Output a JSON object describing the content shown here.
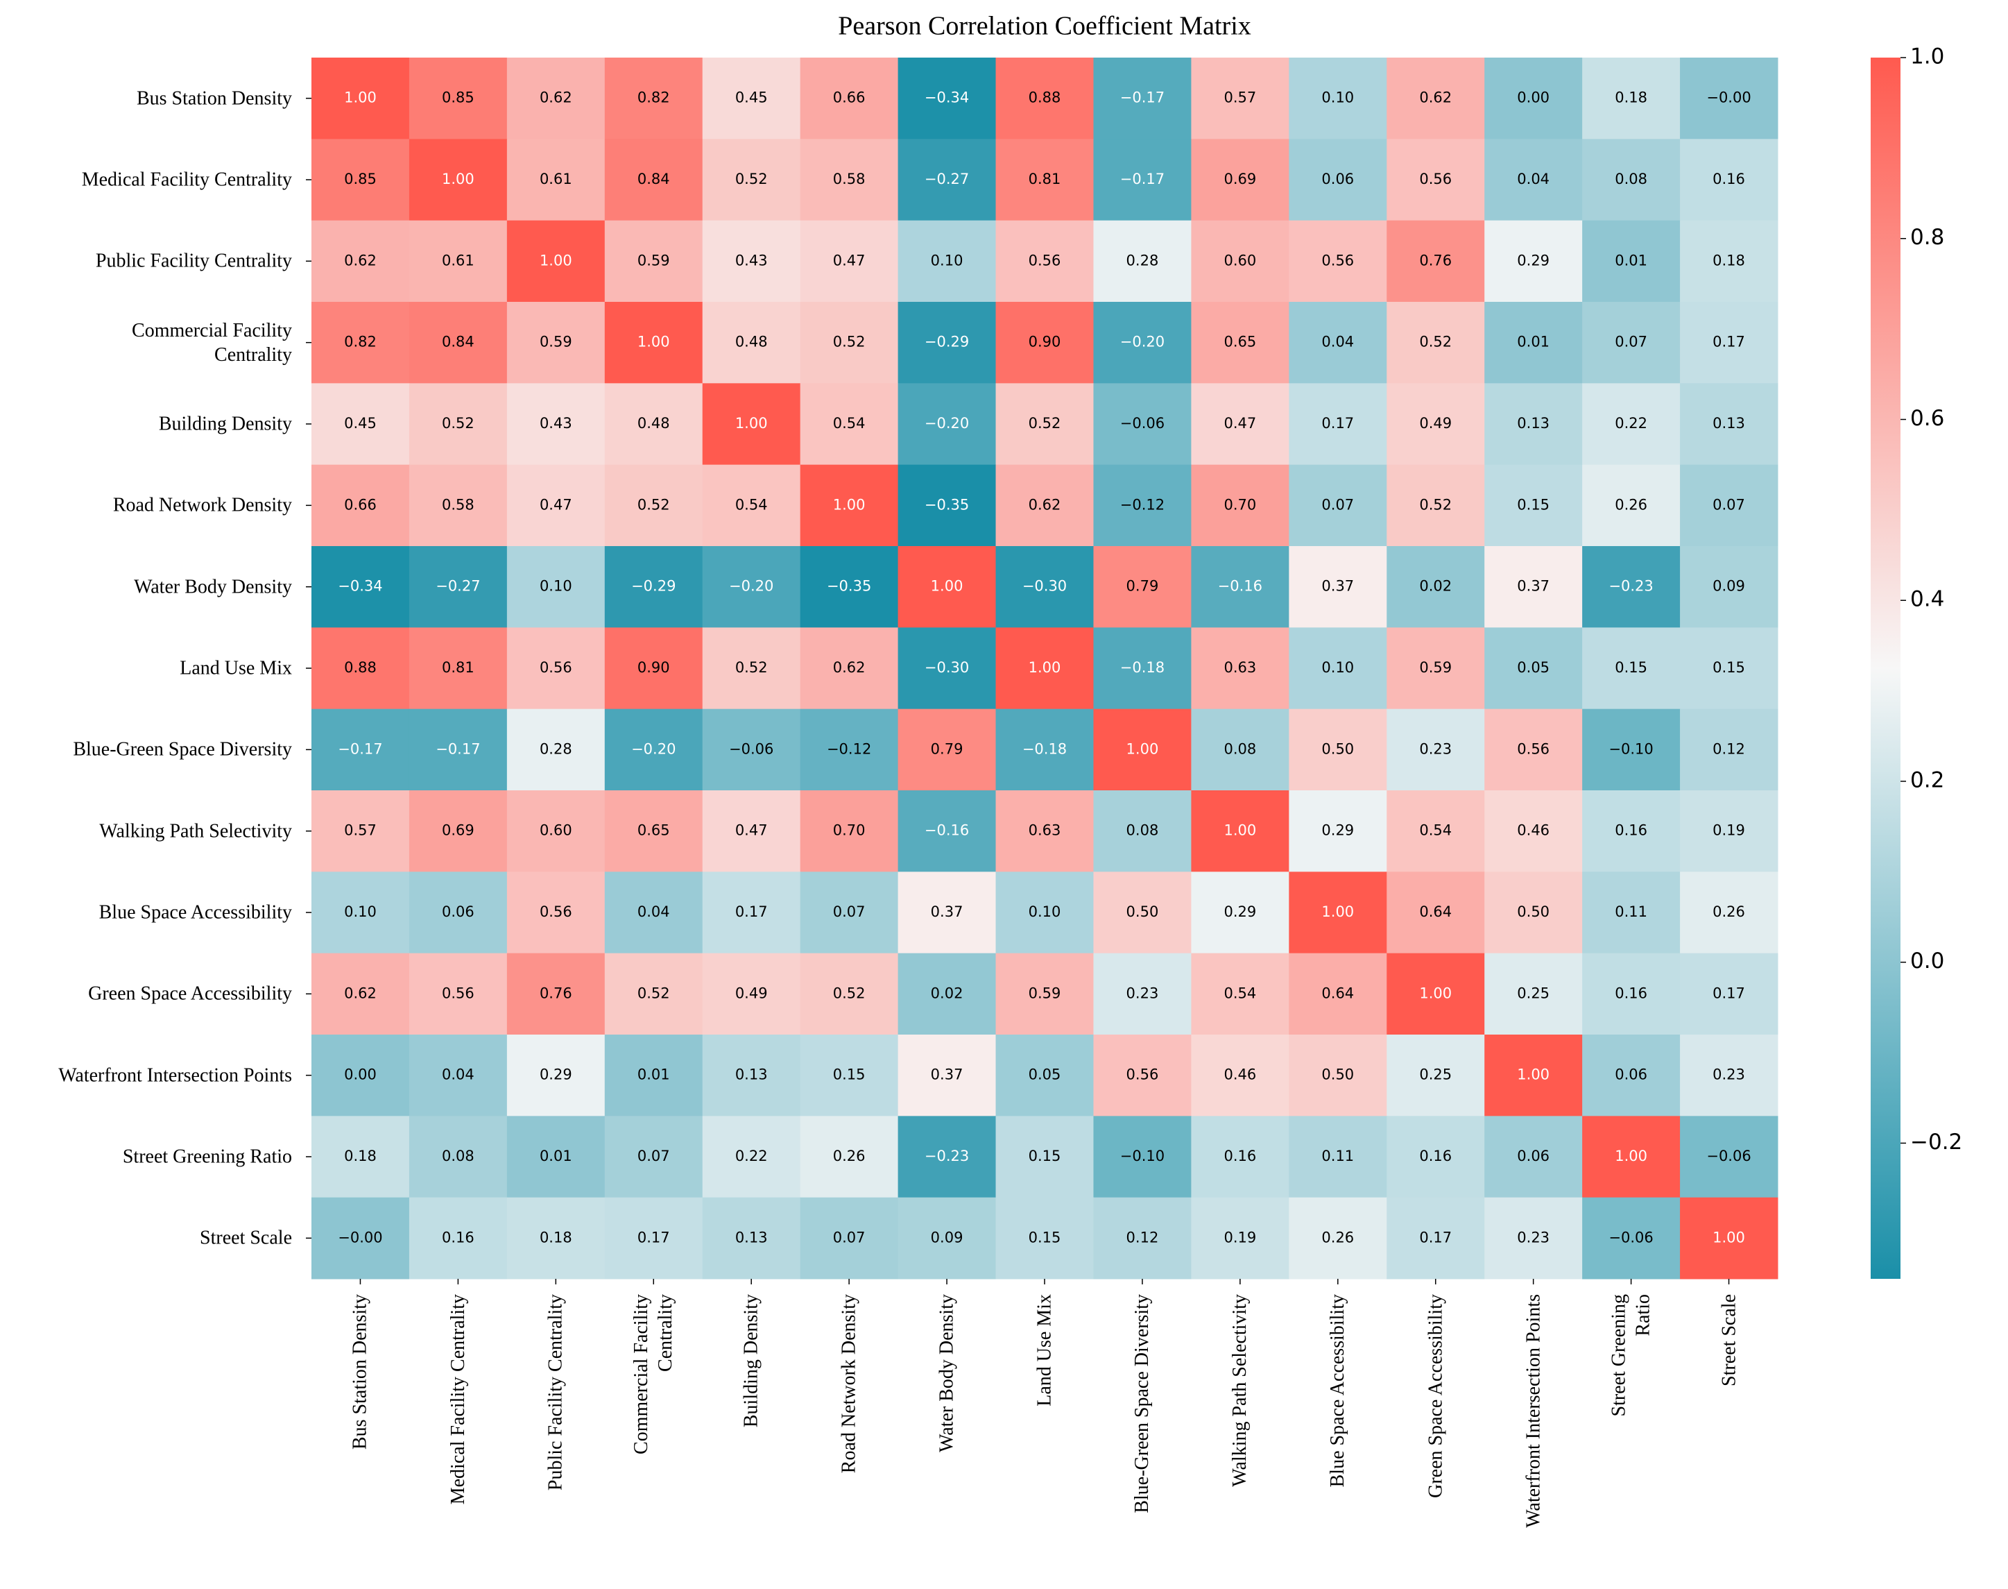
{
  "chart_data": {
    "type": "heatmap",
    "title": "Pearson Correlation Coefficient Matrix",
    "y_labels": [
      "Bus Station Density",
      "Medical Facility Centrality",
      "Public Facility Centrality",
      "Commercial Facility\nCentrality",
      "Building Density",
      "Road Network Density",
      "Water Body Density",
      "Land Use Mix",
      "Blue-Green Space Diversity",
      "Walking Path Selectivity",
      "Blue Space Accessibility",
      "Green Space Accessibility",
      "Waterfront Intersection Points",
      "Street Greening Ratio",
      "Street Scale"
    ],
    "x_labels": [
      "Bus Station Density",
      "Medical Facility Centrality",
      "Public Facility Centrality",
      "Commercial Facility\nCentrality",
      "Building Density",
      "Road Network Density",
      "Water Body Density",
      "Land Use Mix",
      "Blue-Green Space Diversity",
      "Walking Path Selectivity",
      "Blue Space Accessibility",
      "Green Space Accessibility",
      "Waterfront Intersection Points",
      "Street Greening\nRatio",
      "Street Scale"
    ],
    "values": [
      [
        1.0,
        0.85,
        0.62,
        0.82,
        0.45,
        0.66,
        -0.34,
        0.88,
        -0.17,
        0.57,
        0.1,
        0.62,
        0.0,
        0.18,
        0
      ],
      [
        0.85,
        1.0,
        0.61,
        0.84,
        0.52,
        0.58,
        -0.27,
        0.81,
        -0.17,
        0.69,
        0.06,
        0.56,
        0.04,
        0.08,
        0.16
      ],
      [
        0.62,
        0.61,
        1.0,
        0.59,
        0.43,
        0.47,
        0.1,
        0.56,
        0.28,
        0.6,
        0.56,
        0.76,
        0.29,
        0.01,
        0.18
      ],
      [
        0.82,
        0.84,
        0.59,
        1.0,
        0.48,
        0.52,
        -0.29,
        0.9,
        -0.2,
        0.65,
        0.04,
        0.52,
        0.01,
        0.07,
        0.17
      ],
      [
        0.45,
        0.52,
        0.43,
        0.48,
        1.0,
        0.54,
        -0.2,
        0.52,
        -0.06,
        0.47,
        0.17,
        0.49,
        0.13,
        0.22,
        0.13
      ],
      [
        0.66,
        0.58,
        0.47,
        0.52,
        0.54,
        1.0,
        -0.35,
        0.62,
        -0.12,
        0.7,
        0.07,
        0.52,
        0.15,
        0.26,
        0.07
      ],
      [
        -0.34,
        -0.27,
        0.1,
        -0.29,
        -0.2,
        -0.35,
        1.0,
        -0.3,
        0.79,
        -0.16,
        0.37,
        0.02,
        0.37,
        -0.23,
        0.09
      ],
      [
        0.88,
        0.81,
        0.56,
        0.9,
        0.52,
        0.62,
        -0.3,
        1.0,
        -0.18,
        0.63,
        0.1,
        0.59,
        0.05,
        0.15,
        0.15
      ],
      [
        -0.17,
        -0.17,
        0.28,
        -0.2,
        -0.06,
        -0.12,
        0.79,
        -0.18,
        1.0,
        0.08,
        0.5,
        0.23,
        0.56,
        -0.1,
        0.12
      ],
      [
        0.57,
        0.69,
        0.6,
        0.65,
        0.47,
        0.7,
        -0.16,
        0.63,
        0.08,
        1.0,
        0.29,
        0.54,
        0.46,
        0.16,
        0.19
      ],
      [
        0.1,
        0.06,
        0.56,
        0.04,
        0.17,
        0.07,
        0.37,
        0.1,
        0.5,
        0.29,
        1.0,
        0.64,
        0.5,
        0.11,
        0.26
      ],
      [
        0.62,
        0.56,
        0.76,
        0.52,
        0.49,
        0.52,
        0.02,
        0.59,
        0.23,
        0.54,
        0.64,
        1.0,
        0.25,
        0.16,
        0.17
      ],
      [
        0.0,
        0.04,
        0.29,
        0.01,
        0.13,
        0.15,
        0.37,
        0.05,
        0.56,
        0.46,
        0.5,
        0.25,
        1.0,
        0.06,
        0.23
      ],
      [
        0.18,
        0.08,
        0.01,
        0.07,
        0.22,
        0.26,
        -0.23,
        0.15,
        -0.1,
        0.16,
        0.11,
        0.16,
        0.06,
        1.0,
        -0.06
      ],
      [
        0,
        0.16,
        0.18,
        0.17,
        0.13,
        0.07,
        0.09,
        0.15,
        0.12,
        0.19,
        0.26,
        0.17,
        0.23,
        -0.06,
        1.0
      ]
    ],
    "value_labels": [
      [
        "1.00",
        "0.85",
        "0.62",
        "0.82",
        "0.45",
        "0.66",
        "−0.34",
        "0.88",
        "−0.17",
        "0.57",
        "0.10",
        "0.62",
        "0.00",
        "0.18",
        "−0.00"
      ],
      [
        "0.85",
        "1.00",
        "0.61",
        "0.84",
        "0.52",
        "0.58",
        "−0.27",
        "0.81",
        "−0.17",
        "0.69",
        "0.06",
        "0.56",
        "0.04",
        "0.08",
        "0.16"
      ],
      [
        "0.62",
        "0.61",
        "1.00",
        "0.59",
        "0.43",
        "0.47",
        "0.10",
        "0.56",
        "0.28",
        "0.60",
        "0.56",
        "0.76",
        "0.29",
        "0.01",
        "0.18"
      ],
      [
        "0.82",
        "0.84",
        "0.59",
        "1.00",
        "0.48",
        "0.52",
        "−0.29",
        "0.90",
        "−0.20",
        "0.65",
        "0.04",
        "0.52",
        "0.01",
        "0.07",
        "0.17"
      ],
      [
        "0.45",
        "0.52",
        "0.43",
        "0.48",
        "1.00",
        "0.54",
        "−0.20",
        "0.52",
        "−0.06",
        "0.47",
        "0.17",
        "0.49",
        "0.13",
        "0.22",
        "0.13"
      ],
      [
        "0.66",
        "0.58",
        "0.47",
        "0.52",
        "0.54",
        "1.00",
        "−0.35",
        "0.62",
        "−0.12",
        "0.70",
        "0.07",
        "0.52",
        "0.15",
        "0.26",
        "0.07"
      ],
      [
        "−0.34",
        "−0.27",
        "0.10",
        "−0.29",
        "−0.20",
        "−0.35",
        "1.00",
        "−0.30",
        "0.79",
        "−0.16",
        "0.37",
        "0.02",
        "0.37",
        "−0.23",
        "0.09"
      ],
      [
        "0.88",
        "0.81",
        "0.56",
        "0.90",
        "0.52",
        "0.62",
        "−0.30",
        "1.00",
        "−0.18",
        "0.63",
        "0.10",
        "0.59",
        "0.05",
        "0.15",
        "0.15"
      ],
      [
        "−0.17",
        "−0.17",
        "0.28",
        "−0.20",
        "−0.06",
        "−0.12",
        "0.79",
        "−0.18",
        "1.00",
        "0.08",
        "0.50",
        "0.23",
        "0.56",
        "−0.10",
        "0.12"
      ],
      [
        "0.57",
        "0.69",
        "0.60",
        "0.65",
        "0.47",
        "0.70",
        "−0.16",
        "0.63",
        "0.08",
        "1.00",
        "0.29",
        "0.54",
        "0.46",
        "0.16",
        "0.19"
      ],
      [
        "0.10",
        "0.06",
        "0.56",
        "0.04",
        "0.17",
        "0.07",
        "0.37",
        "0.10",
        "0.50",
        "0.29",
        "1.00",
        "0.64",
        "0.50",
        "0.11",
        "0.26"
      ],
      [
        "0.62",
        "0.56",
        "0.76",
        "0.52",
        "0.49",
        "0.52",
        "0.02",
        "0.59",
        "0.23",
        "0.54",
        "0.64",
        "1.00",
        "0.25",
        "0.16",
        "0.17"
      ],
      [
        "0.00",
        "0.04",
        "0.29",
        "0.01",
        "0.13",
        "0.15",
        "0.37",
        "0.05",
        "0.56",
        "0.46",
        "0.50",
        "0.25",
        "1.00",
        "0.06",
        "0.23"
      ],
      [
        "0.18",
        "0.08",
        "0.01",
        "0.07",
        "0.22",
        "0.26",
        "−0.23",
        "0.15",
        "−0.10",
        "0.16",
        "0.11",
        "0.16",
        "0.06",
        "1.00",
        "−0.06"
      ],
      [
        "−0.00",
        "0.16",
        "0.18",
        "0.17",
        "0.13",
        "0.07",
        "0.09",
        "0.15",
        "0.12",
        "0.19",
        "0.26",
        "0.17",
        "0.23",
        "−0.06",
        "1.00"
      ]
    ],
    "colors": [
      "#1a8fa8",
      "#f7f7f7",
      "#ff5a4f"
    ],
    "zlim": [
      -0.35,
      1.0
    ],
    "zticks": [
      {
        "value": -0.2,
        "label": "−0.2"
      },
      {
        "value": 0.0,
        "label": "0.0"
      },
      0.2,
      0.4,
      0.6,
      {
        "value": 1.0,
        "label": "1.0"
      },
      0.8
    ]
  }
}
